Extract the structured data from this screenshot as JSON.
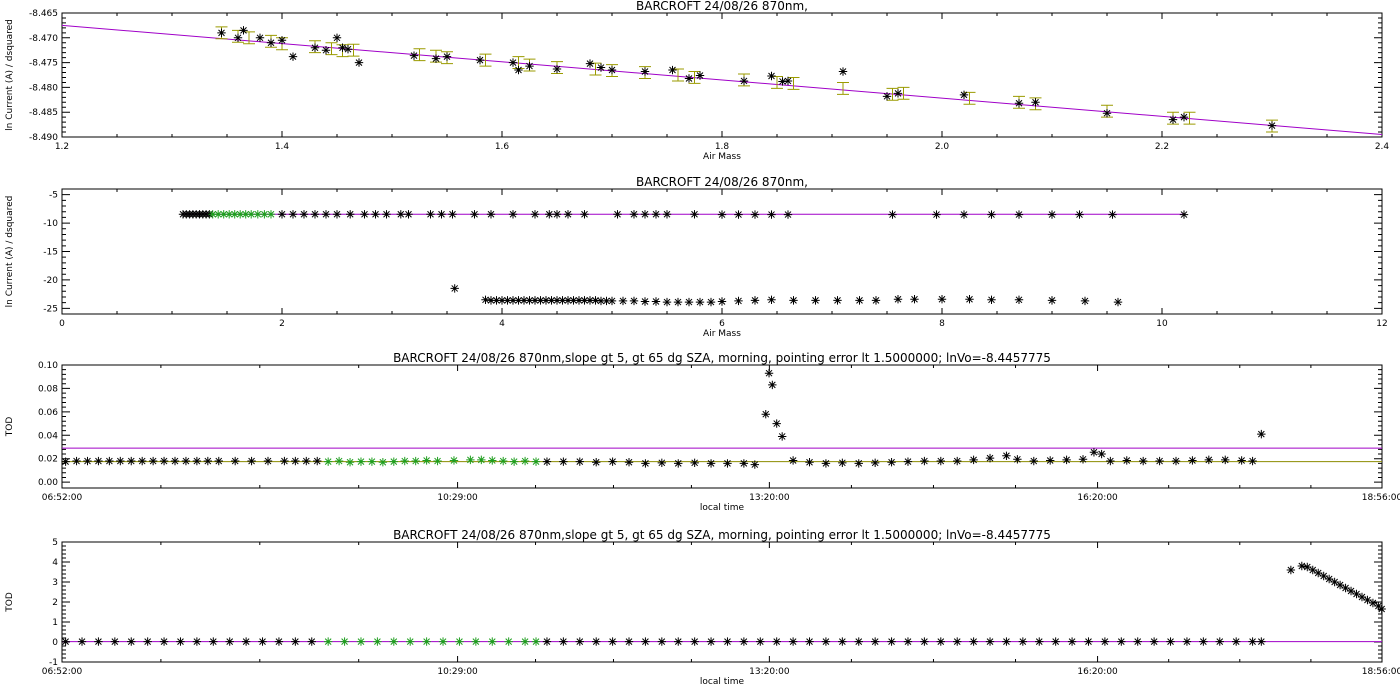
{
  "colors": {
    "axis": "#000000",
    "fit_line": "#a000c8",
    "error_bar": "#9b9b00",
    "point_black": "#000000",
    "point_green": "#1e9e1e",
    "olive_line": "#8c8c00"
  },
  "chart_data": [
    {
      "type": "scatter",
      "title": "BARCROFT 24/08/26 870nm,",
      "xlabel": "Air Mass",
      "ylabel": "ln Current (A) / dsquared",
      "xlim": [
        1.2,
        2.4
      ],
      "ylim": [
        -8.49,
        -8.465
      ],
      "xticks": [
        1.2,
        1.4,
        1.6,
        1.8,
        2.0,
        2.2,
        2.4
      ],
      "xtick_labels": [
        "1.2",
        "1.4",
        "1.6",
        "1.8",
        "2.0",
        "2.2",
        "2.4"
      ],
      "yticks": [
        -8.49,
        -8.485,
        -8.48,
        -8.475,
        -8.47,
        -8.465
      ],
      "ytick_labels": [
        "-8.490",
        "-8.485",
        "-8.480",
        "-8.475",
        "-8.470",
        "-8.465"
      ],
      "fit_line": {
        "x": [
          1.2,
          2.4
        ],
        "y": [
          -8.4675,
          -8.4895
        ]
      },
      "points": {
        "x": [
          1.345,
          1.36,
          1.365,
          1.38,
          1.39,
          1.4,
          1.41,
          1.43,
          1.44,
          1.45,
          1.455,
          1.46,
          1.47,
          1.52,
          1.54,
          1.55,
          1.58,
          1.61,
          1.615,
          1.625,
          1.65,
          1.68,
          1.69,
          1.7,
          1.73,
          1.755,
          1.77,
          1.78,
          1.82,
          1.845,
          1.855,
          1.86,
          1.91,
          1.95,
          1.96,
          2.02,
          2.07,
          2.085,
          2.15,
          2.21,
          2.22,
          2.3
        ],
        "y": [
          -8.469,
          -8.47,
          -8.4685,
          -8.47,
          -8.471,
          -8.4705,
          -8.4738,
          -8.472,
          -8.4725,
          -8.47,
          -8.472,
          -8.4723,
          -8.475,
          -8.4736,
          -8.4742,
          -8.4738,
          -8.4745,
          -8.475,
          -8.4765,
          -8.4757,
          -8.4763,
          -8.4752,
          -8.476,
          -8.4765,
          -8.4768,
          -8.4765,
          -8.4782,
          -8.4776,
          -8.4787,
          -8.4777,
          -8.4788,
          -8.4787,
          -8.4768,
          -8.4818,
          -8.4812,
          -8.4815,
          -8.4832,
          -8.483,
          -8.4852,
          -8.4865,
          -8.486,
          -8.4877
        ]
      },
      "error_bars": {
        "x": [
          1.345,
          1.36,
          1.37,
          1.39,
          1.4,
          1.43,
          1.445,
          1.455,
          1.465,
          1.525,
          1.54,
          1.55,
          1.585,
          1.615,
          1.625,
          1.65,
          1.685,
          1.7,
          1.73,
          1.76,
          1.775,
          1.82,
          1.85,
          1.865,
          1.91,
          1.955,
          1.965,
          2.025,
          2.07,
          2.085,
          2.15,
          2.21,
          2.225,
          2.3
        ],
        "y": [
          -8.469,
          -8.4697,
          -8.47,
          -8.4707,
          -8.4712,
          -8.4718,
          -8.4722,
          -8.4726,
          -8.4725,
          -8.4734,
          -8.4737,
          -8.474,
          -8.4745,
          -8.475,
          -8.4755,
          -8.476,
          -8.4763,
          -8.4766,
          -8.477,
          -8.4775,
          -8.478,
          -8.4785,
          -8.479,
          -8.4792,
          -8.4802,
          -8.4814,
          -8.4812,
          -8.4822,
          -8.483,
          -8.4833,
          -8.4848,
          -8.4862,
          -8.4862,
          -8.4878
        ],
        "half_width": 0.0012
      }
    },
    {
      "type": "scatter",
      "title": "BARCROFT 24/08/26 870nm,",
      "xlabel": "Air Mass",
      "ylabel": "ln Current (A) / dsquared",
      "xlim": [
        0,
        12
      ],
      "ylim": [
        -26,
        -4
      ],
      "xticks": [
        0,
        2,
        4,
        6,
        8,
        10,
        12
      ],
      "xtick_labels": [
        "0",
        "2",
        "4",
        "6",
        "8",
        "10",
        "12"
      ],
      "yticks": [
        -25,
        -20,
        -15,
        -10,
        -5
      ],
      "ytick_labels": [
        "-25",
        "-20",
        "-15",
        "-10",
        "-5"
      ],
      "fit_line": {
        "x": [
          1.1,
          10.2
        ],
        "y": [
          -8.45,
          -8.45
        ]
      },
      "series": [
        {
          "color": "black",
          "x": [
            1.1,
            1.13,
            1.16,
            1.19,
            1.22,
            1.25,
            1.28,
            1.31,
            1.34,
            2.0,
            2.1,
            2.2,
            2.3,
            2.4,
            2.5,
            2.62,
            2.75,
            2.85,
            2.95,
            3.08,
            3.15,
            3.35,
            3.45,
            3.55,
            3.75,
            3.9,
            4.1,
            4.3,
            4.43,
            4.5,
            4.6,
            4.75,
            5.05,
            5.2,
            5.3,
            5.4,
            5.5,
            5.75,
            6.0,
            6.15,
            6.3,
            6.45,
            6.6,
            7.55,
            7.95,
            8.2,
            8.45,
            8.7,
            9.0,
            9.25,
            9.55,
            10.2
          ],
          "y": [
            -8.45,
            -8.45,
            -8.45,
            -8.45,
            -8.45,
            -8.45,
            -8.45,
            -8.45,
            -8.45,
            -8.45,
            -8.45,
            -8.45,
            -8.45,
            -8.45,
            -8.45,
            -8.45,
            -8.45,
            -8.45,
            -8.45,
            -8.45,
            -8.45,
            -8.45,
            -8.45,
            -8.45,
            -8.45,
            -8.45,
            -8.45,
            -8.45,
            -8.45,
            -8.45,
            -8.45,
            -8.45,
            -8.45,
            -8.45,
            -8.45,
            -8.45,
            -8.45,
            -8.45,
            -8.5,
            -8.5,
            -8.5,
            -8.5,
            -8.5,
            -8.5,
            -8.5,
            -8.5,
            -8.5,
            -8.5,
            -8.5,
            -8.5,
            -8.5,
            -8.5
          ]
        },
        {
          "color": "green",
          "x": [
            1.37,
            1.42,
            1.47,
            1.52,
            1.57,
            1.62,
            1.67,
            1.72,
            1.78,
            1.84,
            1.9
          ],
          "y": [
            -8.45,
            -8.45,
            -8.45,
            -8.45,
            -8.45,
            -8.45,
            -8.45,
            -8.45,
            -8.45,
            -8.45,
            -8.45
          ]
        },
        {
          "color": "black",
          "x": [
            3.57,
            3.85,
            3.9,
            3.95,
            4.0,
            4.05,
            4.1,
            4.15,
            4.2,
            4.25,
            4.3,
            4.35,
            4.4,
            4.45,
            4.5,
            4.55,
            4.6,
            4.65,
            4.7,
            4.75,
            4.8,
            4.85,
            4.9,
            4.95,
            5.0,
            5.1,
            5.2,
            5.3,
            5.4,
            5.5,
            5.6,
            5.7,
            5.8,
            5.9,
            6.0,
            6.15,
            6.3,
            6.45,
            6.65,
            6.85,
            7.05,
            7.25,
            7.4,
            7.6,
            7.75,
            8.0,
            8.25,
            8.45,
            8.7,
            9.0,
            9.3,
            9.6
          ],
          "y": [
            -21.5,
            -23.5,
            -23.6,
            -23.6,
            -23.6,
            -23.6,
            -23.6,
            -23.6,
            -23.6,
            -23.6,
            -23.6,
            -23.6,
            -23.6,
            -23.6,
            -23.6,
            -23.6,
            -23.6,
            -23.6,
            -23.6,
            -23.6,
            -23.6,
            -23.6,
            -23.7,
            -23.7,
            -23.7,
            -23.7,
            -23.7,
            -23.8,
            -23.8,
            -23.9,
            -23.9,
            -23.9,
            -23.9,
            -23.9,
            -23.8,
            -23.7,
            -23.6,
            -23.5,
            -23.6,
            -23.6,
            -23.6,
            -23.6,
            -23.6,
            -23.4,
            -23.4,
            -23.4,
            -23.4,
            -23.5,
            -23.5,
            -23.6,
            -23.7,
            -23.9
          ]
        }
      ]
    },
    {
      "type": "scatter",
      "title": "BARCROFT 24/08/26 870nm,slope gt 5, gt 65 dg SZA, morning, pointing error lt 1.5000000; lnVo=-8.4457775",
      "xlabel": "local time",
      "ylabel": "TOD",
      "xlim": [
        6.867,
        18.933
      ],
      "ylim": [
        -0.005,
        0.1
      ],
      "xticks": [
        6.867,
        10.483,
        13.333,
        16.333,
        18.933
      ],
      "xtick_labels": [
        "06:52:00",
        "10:29:00",
        "13:20:00",
        "16:20:00",
        "18:56:00"
      ],
      "yticks": [
        0.0,
        0.02,
        0.04,
        0.06,
        0.08,
        0.1
      ],
      "ytick_labels": [
        "0.00",
        "0.02",
        "0.04",
        "0.06",
        "0.08",
        "0.10"
      ],
      "h_lines": [
        {
          "y": 0.029,
          "color": "purple"
        },
        {
          "y": 0.0175,
          "color": "olive"
        }
      ],
      "series": [
        {
          "color": "black",
          "x": [
            6.9,
            7.0,
            7.1,
            7.2,
            7.3,
            7.4,
            7.5,
            7.6,
            7.7,
            7.8,
            7.9,
            8.0,
            8.1,
            8.2,
            8.3,
            8.45,
            8.6,
            8.75,
            8.9,
            9.0,
            9.1,
            9.2
          ],
          "y": [
            0.0175,
            0.018,
            0.018,
            0.018,
            0.018,
            0.018,
            0.018,
            0.018,
            0.018,
            0.018,
            0.018,
            0.018,
            0.018,
            0.018,
            0.018,
            0.018,
            0.018,
            0.018,
            0.018,
            0.018,
            0.018,
            0.018
          ]
        },
        {
          "color": "green",
          "x": [
            9.3,
            9.4,
            9.5,
            9.6,
            9.7,
            9.8,
            9.9,
            10.0,
            10.1,
            10.2,
            10.3,
            10.45,
            10.6,
            10.7,
            10.8,
            10.9,
            11.0,
            11.1,
            11.2
          ],
          "y": [
            0.0175,
            0.018,
            0.017,
            0.0175,
            0.0175,
            0.017,
            0.0175,
            0.018,
            0.018,
            0.0185,
            0.018,
            0.0185,
            0.019,
            0.019,
            0.0185,
            0.018,
            0.0175,
            0.018,
            0.0175
          ]
        },
        {
          "color": "black",
          "x": [
            11.3,
            11.45,
            11.6,
            11.75,
            11.9,
            12.05,
            12.2,
            12.35,
            12.5,
            12.65,
            12.8,
            12.95,
            13.1,
            13.2,
            13.3,
            13.33,
            13.36,
            13.4,
            13.45,
            13.55,
            13.7,
            13.85,
            14.0,
            14.15,
            14.3,
            14.45,
            14.6,
            14.75,
            14.9,
            15.05,
            15.2,
            15.35,
            15.5,
            15.6,
            15.75,
            15.9,
            16.05,
            16.2,
            16.3,
            16.37,
            16.45,
            16.6,
            16.75,
            16.9,
            17.05,
            17.2,
            17.35,
            17.5,
            17.65,
            17.75,
            17.83
          ],
          "y": [
            0.0175,
            0.0175,
            0.0175,
            0.017,
            0.0175,
            0.017,
            0.016,
            0.0165,
            0.016,
            0.0165,
            0.016,
            0.016,
            0.016,
            0.015,
            0.058,
            0.093,
            0.083,
            0.05,
            0.039,
            0.0185,
            0.017,
            0.016,
            0.0165,
            0.016,
            0.0165,
            0.017,
            0.0175,
            0.018,
            0.018,
            0.018,
            0.019,
            0.0205,
            0.0225,
            0.0195,
            0.018,
            0.0185,
            0.019,
            0.0195,
            0.0255,
            0.024,
            0.018,
            0.0185,
            0.018,
            0.018,
            0.018,
            0.0185,
            0.019,
            0.019,
            0.0185,
            0.018,
            0.041
          ]
        }
      ]
    },
    {
      "type": "scatter",
      "title": "BARCROFT 24/08/26 870nm,slope gt 5, gt 65 dg SZA, morning, pointing error lt 1.5000000; lnVo=-8.4457775",
      "xlabel": "local time",
      "ylabel": "TOD",
      "xlim": [
        6.867,
        18.933
      ],
      "ylim": [
        -1,
        5
      ],
      "xticks": [
        6.867,
        10.483,
        13.333,
        16.333,
        18.933
      ],
      "xtick_labels": [
        "06:52:00",
        "10:29:00",
        "13:20:00",
        "16:20:00",
        "18:56:00"
      ],
      "yticks": [
        -1,
        0,
        1,
        2,
        3,
        4,
        5
      ],
      "ytick_labels": [
        "-1",
        "0",
        "1",
        "2",
        "3",
        "4",
        "5"
      ],
      "fit_line": {
        "x": [
          6.867,
          18.933
        ],
        "y": [
          0.02,
          0.02
        ]
      },
      "series": [
        {
          "color": "black",
          "x": [
            6.9,
            7.05,
            7.2,
            7.35,
            7.5,
            7.65,
            7.8,
            7.95,
            8.1,
            8.25,
            8.4,
            8.55,
            8.7,
            8.85,
            9.0,
            9.15
          ],
          "y": [
            0.02,
            0.02,
            0.02,
            0.02,
            0.02,
            0.02,
            0.02,
            0.02,
            0.02,
            0.02,
            0.02,
            0.02,
            0.02,
            0.02,
            0.02,
            0.02
          ]
        },
        {
          "color": "green",
          "x": [
            9.3,
            9.45,
            9.6,
            9.75,
            9.9,
            10.05,
            10.2,
            10.35,
            10.5,
            10.65,
            10.8,
            10.95,
            11.1,
            11.2
          ],
          "y": [
            0.02,
            0.02,
            0.02,
            0.02,
            0.02,
            0.02,
            0.02,
            0.02,
            0.02,
            0.02,
            0.02,
            0.02,
            0.02,
            0.02
          ]
        },
        {
          "color": "black",
          "x": [
            11.3,
            11.45,
            11.6,
            11.75,
            11.9,
            12.05,
            12.2,
            12.35,
            12.5,
            12.65,
            12.8,
            12.95,
            13.1,
            13.25,
            13.4,
            13.55,
            13.7,
            13.85,
            14.0,
            14.15,
            14.3,
            14.45,
            14.6,
            14.75,
            14.9,
            15.05,
            15.2,
            15.35,
            15.5,
            15.65,
            15.8,
            15.95,
            16.1,
            16.25,
            16.4,
            16.55,
            16.7,
            16.85,
            17.0,
            17.15,
            17.3,
            17.45,
            17.6,
            17.75,
            17.83
          ],
          "y": [
            0.02,
            0.02,
            0.02,
            0.02,
            0.02,
            0.02,
            0.02,
            0.02,
            0.02,
            0.02,
            0.02,
            0.02,
            0.02,
            0.02,
            0.02,
            0.02,
            0.02,
            0.02,
            0.02,
            0.02,
            0.02,
            0.02,
            0.02,
            0.02,
            0.02,
            0.02,
            0.02,
            0.02,
            0.02,
            0.02,
            0.02,
            0.02,
            0.02,
            0.02,
            0.02,
            0.02,
            0.02,
            0.02,
            0.02,
            0.02,
            0.02,
            0.02,
            0.02,
            0.02,
            0.02
          ]
        },
        {
          "color": "black",
          "x": [
            18.1,
            18.2,
            18.25,
            18.3,
            18.35,
            18.4,
            18.45,
            18.5,
            18.55,
            18.6,
            18.65,
            18.7,
            18.75,
            18.8,
            18.85,
            18.9,
            18.93
          ],
          "y": [
            3.6,
            3.8,
            3.75,
            3.6,
            3.45,
            3.3,
            3.15,
            3.0,
            2.85,
            2.7,
            2.55,
            2.4,
            2.25,
            2.1,
            1.95,
            1.8,
            1.65
          ]
        }
      ]
    }
  ]
}
